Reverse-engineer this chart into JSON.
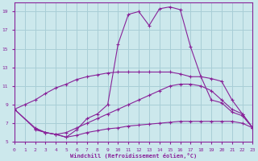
{
  "xlabel": "Windchill (Refroidissement éolien,°C)",
  "background_color": "#cce8ec",
  "grid_color": "#a8ced6",
  "line_color": "#882299",
  "xlim": [
    0,
    23
  ],
  "ylim": [
    5,
    20
  ],
  "xticks": [
    0,
    1,
    2,
    3,
    4,
    5,
    6,
    7,
    8,
    9,
    10,
    11,
    12,
    13,
    14,
    15,
    16,
    17,
    18,
    19,
    20,
    21,
    22,
    23
  ],
  "yticks": [
    5,
    7,
    9,
    11,
    13,
    15,
    17,
    19
  ],
  "curve_peak": {
    "x": [
      0,
      2,
      3,
      4,
      5,
      6,
      7,
      8,
      9,
      10,
      11,
      12,
      13,
      14,
      15,
      16,
      17,
      18,
      19,
      20,
      21,
      22,
      23
    ],
    "y": [
      8.5,
      6.5,
      6.0,
      5.8,
      5.5,
      6.3,
      7.5,
      8.0,
      9.0,
      15.5,
      18.7,
      19.0,
      17.5,
      19.3,
      19.5,
      19.2,
      15.2,
      12.0,
      9.5,
      9.2,
      8.2,
      7.8,
      6.5
    ]
  },
  "curve_slow": {
    "x": [
      0,
      1,
      2,
      3,
      4,
      5,
      6,
      7,
      8,
      9,
      10,
      11,
      12,
      13,
      14,
      15,
      16,
      17,
      18,
      19,
      20,
      21,
      22,
      23
    ],
    "y": [
      8.5,
      9.0,
      9.5,
      10.2,
      10.8,
      11.2,
      11.7,
      12.0,
      12.2,
      12.4,
      12.5,
      12.5,
      12.5,
      12.5,
      12.5,
      12.5,
      12.3,
      12.0,
      12.0,
      11.8,
      11.5,
      9.5,
      8.0,
      6.5
    ]
  },
  "curve_mid": {
    "x": [
      2,
      3,
      4,
      5,
      6,
      7,
      8,
      9,
      10,
      11,
      12,
      13,
      14,
      15,
      16,
      17,
      18,
      19,
      20,
      21,
      22,
      23
    ],
    "y": [
      6.3,
      6.0,
      5.8,
      6.0,
      6.5,
      7.0,
      7.5,
      8.0,
      8.5,
      9.0,
      9.5,
      10.0,
      10.5,
      11.0,
      11.2,
      11.2,
      11.0,
      10.5,
      9.5,
      8.5,
      8.0,
      6.5
    ]
  },
  "curve_flat": {
    "x": [
      0,
      2,
      3,
      4,
      5,
      6,
      7,
      8,
      9,
      10,
      11,
      12,
      13,
      14,
      15,
      16,
      17,
      18,
      19,
      20,
      21,
      22,
      23
    ],
    "y": [
      8.5,
      6.4,
      6.0,
      5.8,
      5.5,
      5.7,
      6.0,
      6.2,
      6.4,
      6.5,
      6.7,
      6.8,
      6.9,
      7.0,
      7.1,
      7.2,
      7.2,
      7.2,
      7.2,
      7.2,
      7.2,
      7.0,
      6.5
    ]
  }
}
